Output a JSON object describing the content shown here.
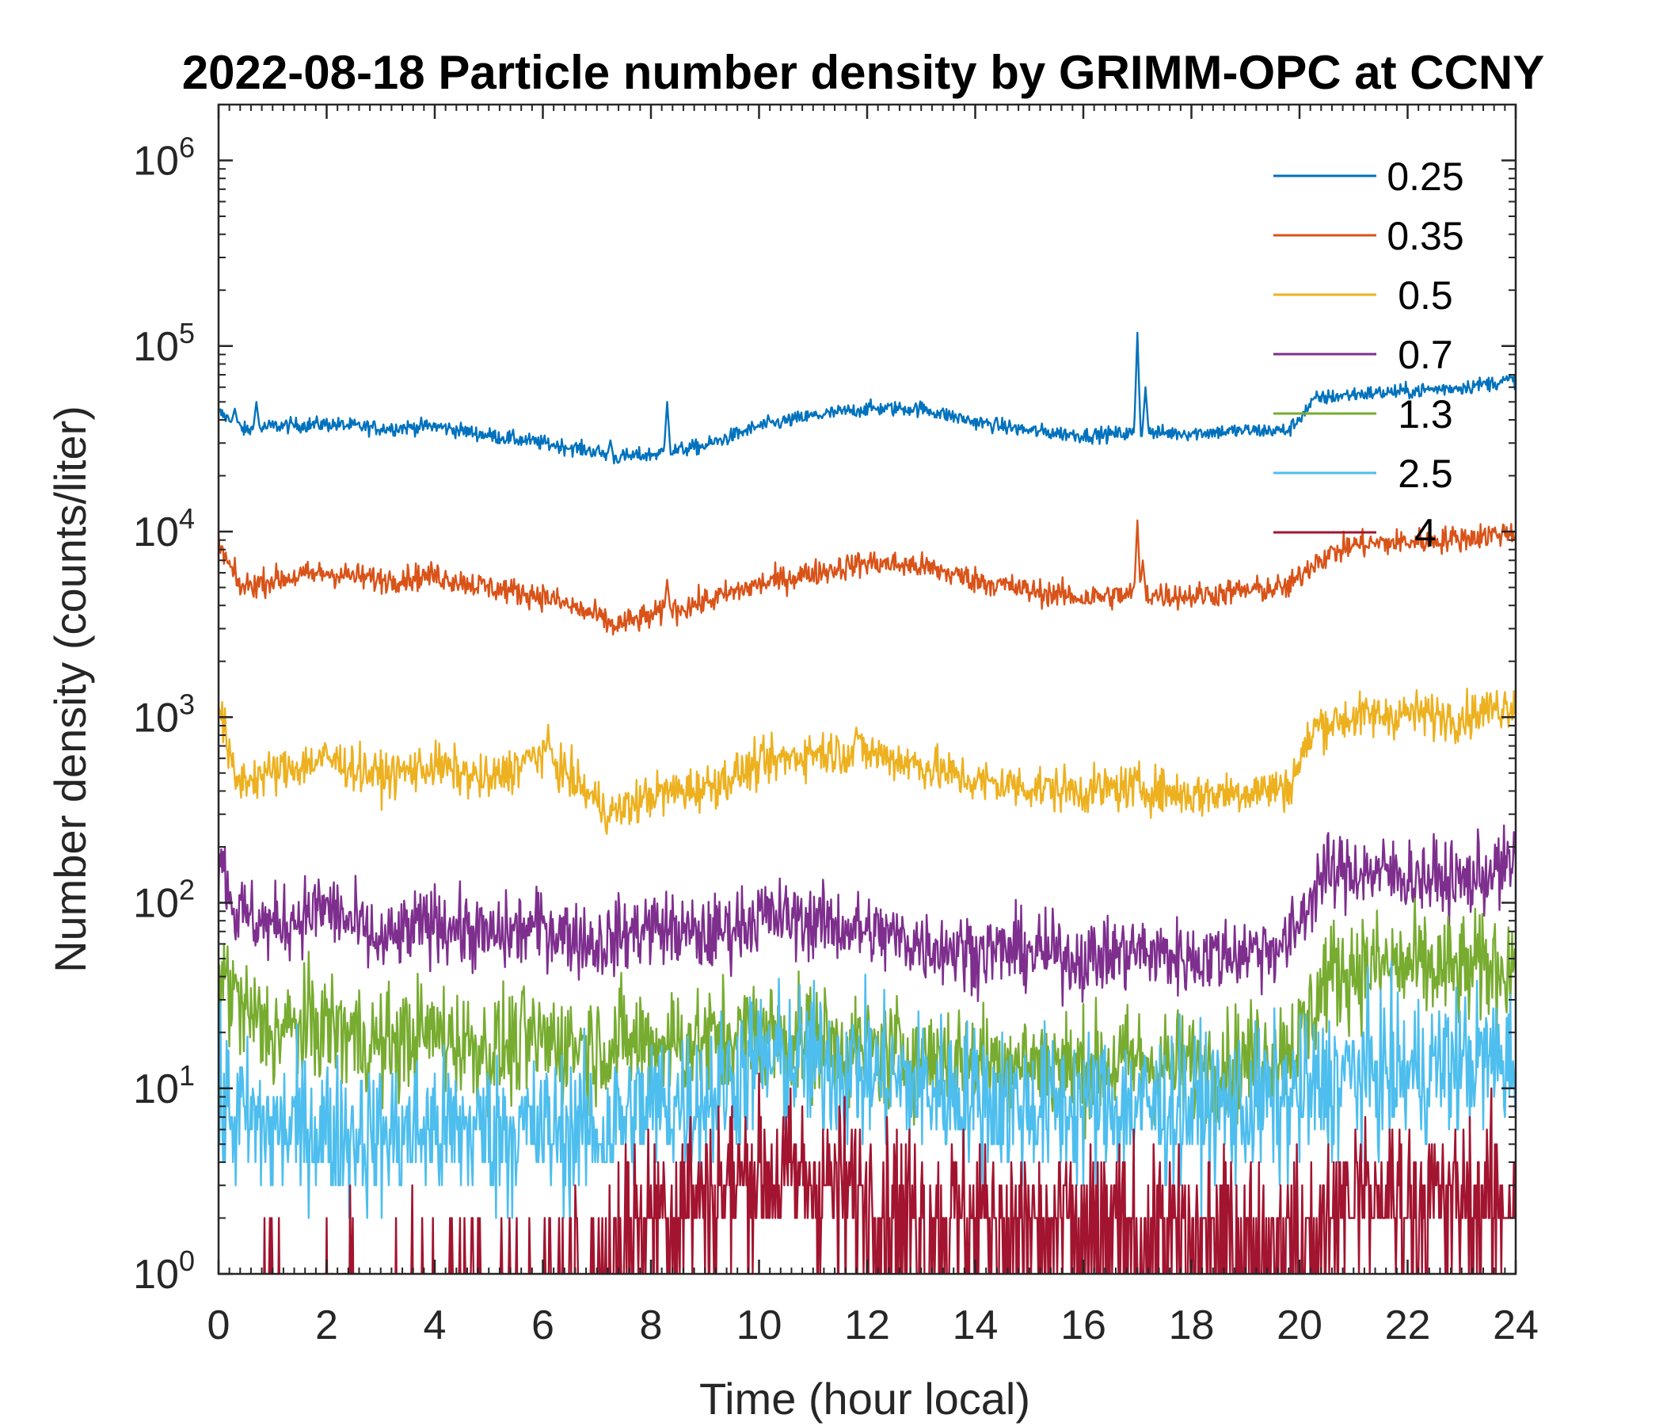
{
  "chart_data": {
    "type": "line",
    "title": "2022-08-18 Particle number density by GRIMM-OPC at CCNY",
    "xlabel": "Time (hour local)",
    "ylabel": "Number density (counts/liter)",
    "xlim": [
      0,
      24
    ],
    "ylim": [
      1,
      2000000
    ],
    "yscale": "log",
    "x_ticks": [
      "0",
      "2",
      "4",
      "6",
      "8",
      "10",
      "12",
      "14",
      "16",
      "18",
      "20",
      "22",
      "24"
    ],
    "y_ticks": [
      {
        "base": "10",
        "exp": "0",
        "value": 1
      },
      {
        "base": "10",
        "exp": "1",
        "value": 10
      },
      {
        "base": "10",
        "exp": "2",
        "value": 100
      },
      {
        "base": "10",
        "exp": "3",
        "value": 1000
      },
      {
        "base": "10",
        "exp": "4",
        "value": 10000
      },
      {
        "base": "10",
        "exp": "5",
        "value": 100000
      },
      {
        "base": "10",
        "exp": "6",
        "value": 1000000
      }
    ],
    "legend_position": "top-right",
    "series": [
      {
        "name": "0.25",
        "color": "#0072BD",
        "noise": 0.04,
        "x": [
          0,
          0.5,
          1,
          2,
          3,
          4,
          5,
          6,
          7,
          7.3,
          8,
          9,
          10,
          11,
          12,
          13,
          14,
          15,
          16,
          17,
          18,
          19,
          19.8,
          20.3,
          21,
          22,
          23,
          24
        ],
        "y": [
          44000,
          35000,
          37000,
          38000,
          36000,
          37000,
          33000,
          30000,
          27000,
          25000,
          26000,
          29000,
          37000,
          42000,
          46000,
          46000,
          39000,
          35000,
          33000,
          34000,
          34000,
          35000,
          35000,
          52000,
          55000,
          57000,
          60000,
          66000
        ],
        "spikes": [
          [
            0.3,
            46000
          ],
          [
            0.7,
            50000
          ],
          [
            8.3,
            50000
          ],
          [
            17,
            118000
          ],
          [
            17.15,
            60000
          ],
          [
            7.25,
            31000
          ]
        ]
      },
      {
        "name": "0.35",
        "color": "#D95319",
        "noise": 0.07,
        "x": [
          0,
          0.4,
          1,
          2,
          3,
          4,
          5,
          6,
          7,
          7.3,
          8,
          9,
          10,
          11,
          12,
          13,
          14,
          15,
          16,
          17,
          18,
          19,
          19.8,
          20.3,
          21,
          22,
          23,
          24
        ],
        "y": [
          8500,
          5000,
          5500,
          6000,
          5500,
          5800,
          5000,
          4500,
          3500,
          3100,
          3500,
          4200,
          5200,
          6000,
          6800,
          6500,
          5500,
          4800,
          4400,
          4600,
          4500,
          4800,
          5000,
          7000,
          8500,
          8800,
          9200,
          10000
        ],
        "spikes": [
          [
            8.3,
            5500
          ],
          [
            17,
            11500
          ],
          [
            17.1,
            7000
          ]
        ]
      },
      {
        "name": "0.5",
        "color": "#EDB120",
        "noise": 0.12,
        "x": [
          0,
          0.3,
          1,
          2,
          3,
          4,
          5,
          6,
          7,
          7.3,
          8,
          9,
          10,
          11,
          12,
          13,
          14,
          15,
          16,
          17,
          18,
          19,
          19.8,
          20.3,
          21,
          22,
          23,
          24
        ],
        "y": [
          1200,
          450,
          500,
          600,
          480,
          550,
          450,
          650,
          350,
          300,
          380,
          420,
          550,
          650,
          650,
          550,
          450,
          420,
          400,
          420,
          380,
          400,
          420,
          900,
          1000,
          1050,
          1000,
          1200
        ],
        "spikes": [
          [
            6.1,
            780
          ],
          [
            11.8,
            880
          ]
        ]
      },
      {
        "name": "0.7",
        "color": "#7E2F8E",
        "noise": 0.2,
        "x": [
          0,
          0.3,
          1,
          2,
          3,
          4,
          5,
          6,
          7,
          8,
          9,
          10,
          11,
          12,
          13,
          14,
          15,
          16,
          17,
          18,
          19,
          19.8,
          20.4,
          21,
          22,
          23,
          24
        ],
        "y": [
          200,
          90,
          75,
          95,
          60,
          80,
          65,
          75,
          60,
          75,
          65,
          85,
          80,
          70,
          60,
          55,
          55,
          50,
          55,
          50,
          55,
          60,
          140,
          150,
          140,
          130,
          160
        ],
        "spikes": []
      },
      {
        "name": "1.3",
        "color": "#77AC30",
        "noise": 0.3,
        "x": [
          0,
          0.5,
          1,
          2,
          3,
          4,
          5,
          6,
          7,
          8,
          9,
          10,
          11,
          12,
          13,
          14,
          15,
          16,
          17,
          18,
          19,
          20,
          20.5,
          21,
          22,
          23,
          24
        ],
        "y": [
          45,
          25,
          20,
          22,
          17,
          20,
          16,
          18,
          17,
          18,
          18,
          20,
          18,
          16,
          15,
          14,
          14,
          13,
          14,
          13,
          14,
          18,
          40,
          45,
          45,
          42,
          48
        ],
        "spikes": []
      },
      {
        "name": "2.5",
        "color": "#4DBEEE",
        "noise": 0.4,
        "x": [
          0,
          1,
          2,
          3,
          4,
          5,
          6,
          7,
          8,
          9,
          10,
          11,
          12,
          13,
          14,
          15,
          16,
          17,
          18,
          19,
          20,
          21,
          22,
          23,
          24
        ],
        "y": [
          8,
          6,
          6,
          5.5,
          6,
          6,
          6,
          6,
          8,
          9,
          14,
          14,
          12,
          10,
          9,
          8,
          8,
          8,
          8,
          8,
          9,
          12,
          12,
          14,
          14
        ],
        "spikes": []
      },
      {
        "name": "4",
        "color": "#A2142F",
        "noise": 0.45,
        "x": [
          0,
          1,
          2,
          3,
          4,
          5,
          6,
          7,
          7.5,
          8,
          9,
          10,
          11,
          12,
          13,
          14,
          15,
          16,
          17,
          18,
          19,
          20,
          20.7,
          21,
          22,
          23,
          24
        ],
        "y": [
          0.5,
          0.6,
          0.7,
          0.7,
          0.7,
          0.8,
          0.8,
          0.9,
          1.8,
          2.2,
          2.8,
          3.5,
          3.2,
          2.6,
          2.2,
          2,
          1.8,
          1.7,
          1.7,
          1.6,
          1.6,
          1.5,
          2.4,
          2.6,
          2.5,
          2.5,
          2.4
        ],
        "spikes": []
      }
    ]
  }
}
